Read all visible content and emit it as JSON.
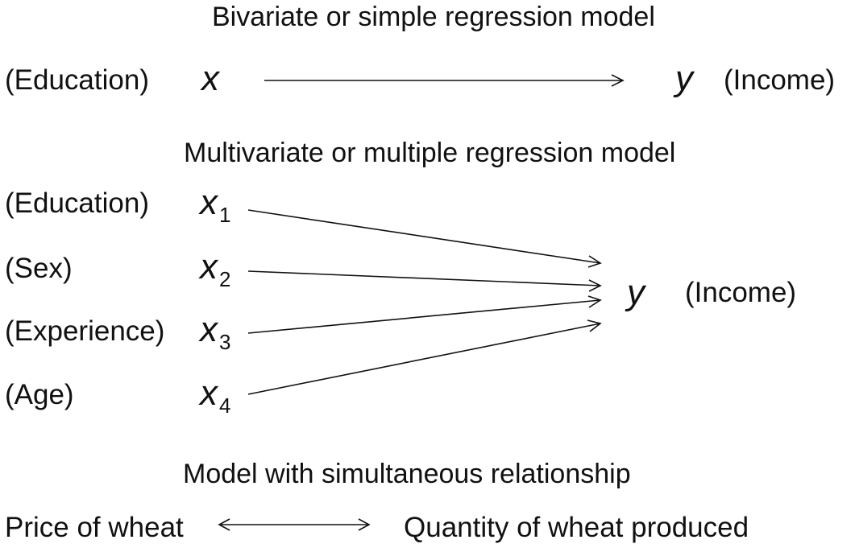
{
  "bivariate": {
    "title": "Bivariate or simple regression model",
    "x_label": "(Education)",
    "x_var": "x",
    "y_var": "y",
    "y_label": "(Income)"
  },
  "multivariate": {
    "title": "Multivariate or multiple regression model",
    "inputs": [
      {
        "label": "(Education)",
        "var": "x",
        "sub": "1"
      },
      {
        "label": "(Sex)",
        "var": "x",
        "sub": "2"
      },
      {
        "label": "(Experience)",
        "var": "x",
        "sub": "3"
      },
      {
        "label": "(Age)",
        "var": "x",
        "sub": "4"
      }
    ],
    "y_var": "y",
    "y_label": "(Income)"
  },
  "simultaneous": {
    "title": "Model with simultaneous relationship",
    "left": "Price of wheat",
    "right": "Quantity of wheat produced"
  }
}
